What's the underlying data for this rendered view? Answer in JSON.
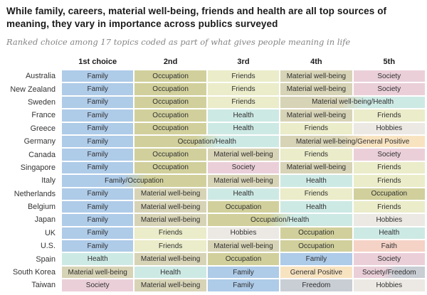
{
  "title": "While family, careers, material well-being, friends and health are all top sources of meaning, they vary in importance across publics surveyed",
  "subtitle": "Ranked choice among 17 topics coded as part of what gives people meaning in life",
  "chart_data": {
    "type": "table",
    "columns": [
      "1st choice",
      "2nd",
      "3rd",
      "4th",
      "5th"
    ],
    "palette": {
      "family": "#aecbe8",
      "occupation": "#d1d09c",
      "friends": "#ebecc9",
      "material": "#d7d3b6",
      "society": "#eacfd9",
      "health": "#cde9e4",
      "hobbies": "#ece9e4",
      "faith": "#f5d2c6",
      "positive": "#f8e3c1",
      "freedom": "#c9ced5"
    },
    "rows": [
      {
        "country": "Australia",
        "cells": [
          {
            "label": "Family",
            "cats": [
              "family"
            ],
            "span": 1
          },
          {
            "label": "Occupation",
            "cats": [
              "occupation"
            ],
            "span": 1
          },
          {
            "label": "Friends",
            "cats": [
              "friends"
            ],
            "span": 1
          },
          {
            "label": "Material well-being",
            "cats": [
              "material"
            ],
            "span": 1
          },
          {
            "label": "Society",
            "cats": [
              "society"
            ],
            "span": 1
          }
        ]
      },
      {
        "country": "New Zealand",
        "cells": [
          {
            "label": "Family",
            "cats": [
              "family"
            ],
            "span": 1
          },
          {
            "label": "Occupation",
            "cats": [
              "occupation"
            ],
            "span": 1
          },
          {
            "label": "Friends",
            "cats": [
              "friends"
            ],
            "span": 1
          },
          {
            "label": "Material well-being",
            "cats": [
              "material"
            ],
            "span": 1
          },
          {
            "label": "Society",
            "cats": [
              "society"
            ],
            "span": 1
          }
        ]
      },
      {
        "country": "Sweden",
        "cells": [
          {
            "label": "Family",
            "cats": [
              "family"
            ],
            "span": 1
          },
          {
            "label": "Occupation",
            "cats": [
              "occupation"
            ],
            "span": 1
          },
          {
            "label": "Friends",
            "cats": [
              "friends"
            ],
            "span": 1
          },
          {
            "label": "Material well-being/Health",
            "cats": [
              "material",
              "health"
            ],
            "span": 2
          }
        ]
      },
      {
        "country": "France",
        "cells": [
          {
            "label": "Family",
            "cats": [
              "family"
            ],
            "span": 1
          },
          {
            "label": "Occupation",
            "cats": [
              "occupation"
            ],
            "span": 1
          },
          {
            "label": "Health",
            "cats": [
              "health"
            ],
            "span": 1
          },
          {
            "label": "Material well-being",
            "cats": [
              "material"
            ],
            "span": 1
          },
          {
            "label": "Friends",
            "cats": [
              "friends"
            ],
            "span": 1
          }
        ]
      },
      {
        "country": "Greece",
        "cells": [
          {
            "label": "Family",
            "cats": [
              "family"
            ],
            "span": 1
          },
          {
            "label": "Occupation",
            "cats": [
              "occupation"
            ],
            "span": 1
          },
          {
            "label": "Health",
            "cats": [
              "health"
            ],
            "span": 1
          },
          {
            "label": "Friends",
            "cats": [
              "friends"
            ],
            "span": 1
          },
          {
            "label": "Hobbies",
            "cats": [
              "hobbies"
            ],
            "span": 1
          }
        ]
      },
      {
        "country": "Germany",
        "cells": [
          {
            "label": "Family",
            "cats": [
              "family"
            ],
            "span": 1
          },
          {
            "label": "Occupation/Health",
            "cats": [
              "occupation",
              "health"
            ],
            "span": 2
          },
          {
            "label": "Material well-being/General Positive",
            "cats": [
              "material",
              "positive"
            ],
            "span": 2
          }
        ]
      },
      {
        "country": "Canada",
        "cells": [
          {
            "label": "Family",
            "cats": [
              "family"
            ],
            "span": 1
          },
          {
            "label": "Occupation",
            "cats": [
              "occupation"
            ],
            "span": 1
          },
          {
            "label": "Material well-being",
            "cats": [
              "material"
            ],
            "span": 1
          },
          {
            "label": "Friends",
            "cats": [
              "friends"
            ],
            "span": 1
          },
          {
            "label": "Society",
            "cats": [
              "society"
            ],
            "span": 1
          }
        ]
      },
      {
        "country": "Singapore",
        "cells": [
          {
            "label": "Family",
            "cats": [
              "family"
            ],
            "span": 1
          },
          {
            "label": "Occupation",
            "cats": [
              "occupation"
            ],
            "span": 1
          },
          {
            "label": "Society",
            "cats": [
              "society"
            ],
            "span": 1
          },
          {
            "label": "Material well-being",
            "cats": [
              "material"
            ],
            "span": 1
          },
          {
            "label": "Friends",
            "cats": [
              "friends"
            ],
            "span": 1
          }
        ]
      },
      {
        "country": "Italy",
        "cells": [
          {
            "label": "Family/Occupation",
            "cats": [
              "family",
              "occupation"
            ],
            "span": 2
          },
          {
            "label": "Material well-being",
            "cats": [
              "material"
            ],
            "span": 1
          },
          {
            "label": "Health",
            "cats": [
              "health"
            ],
            "span": 1
          },
          {
            "label": "Friends",
            "cats": [
              "friends"
            ],
            "span": 1
          }
        ]
      },
      {
        "country": "Netherlands",
        "cells": [
          {
            "label": "Family",
            "cats": [
              "family"
            ],
            "span": 1
          },
          {
            "label": "Material well-being",
            "cats": [
              "material"
            ],
            "span": 1
          },
          {
            "label": "Health",
            "cats": [
              "health"
            ],
            "span": 1
          },
          {
            "label": "Friends",
            "cats": [
              "friends"
            ],
            "span": 1
          },
          {
            "label": "Occupation",
            "cats": [
              "occupation"
            ],
            "span": 1
          }
        ]
      },
      {
        "country": "Belgium",
        "cells": [
          {
            "label": "Family",
            "cats": [
              "family"
            ],
            "span": 1
          },
          {
            "label": "Material well-being",
            "cats": [
              "material"
            ],
            "span": 1
          },
          {
            "label": "Occupation",
            "cats": [
              "occupation"
            ],
            "span": 1
          },
          {
            "label": "Health",
            "cats": [
              "health"
            ],
            "span": 1
          },
          {
            "label": "Friends",
            "cats": [
              "friends"
            ],
            "span": 1
          }
        ]
      },
      {
        "country": "Japan",
        "cells": [
          {
            "label": "Family",
            "cats": [
              "family"
            ],
            "span": 1
          },
          {
            "label": "Material well-being",
            "cats": [
              "material"
            ],
            "span": 1
          },
          {
            "label": "Occupation/Health",
            "cats": [
              "occupation",
              "health"
            ],
            "span": 2
          },
          {
            "label": "Hobbies",
            "cats": [
              "hobbies"
            ],
            "span": 1
          }
        ]
      },
      {
        "country": "UK",
        "cells": [
          {
            "label": "Family",
            "cats": [
              "family"
            ],
            "span": 1
          },
          {
            "label": "Friends",
            "cats": [
              "friends"
            ],
            "span": 1
          },
          {
            "label": "Hobbies",
            "cats": [
              "hobbies"
            ],
            "span": 1
          },
          {
            "label": "Occupation",
            "cats": [
              "occupation"
            ],
            "span": 1
          },
          {
            "label": "Health",
            "cats": [
              "health"
            ],
            "span": 1
          }
        ]
      },
      {
        "country": "U.S.",
        "cells": [
          {
            "label": "Family",
            "cats": [
              "family"
            ],
            "span": 1
          },
          {
            "label": "Friends",
            "cats": [
              "friends"
            ],
            "span": 1
          },
          {
            "label": "Material well-being",
            "cats": [
              "material"
            ],
            "span": 1
          },
          {
            "label": "Occupation",
            "cats": [
              "occupation"
            ],
            "span": 1
          },
          {
            "label": "Faith",
            "cats": [
              "faith"
            ],
            "span": 1
          }
        ]
      },
      {
        "country": "Spain",
        "cells": [
          {
            "label": "Health",
            "cats": [
              "health"
            ],
            "span": 1
          },
          {
            "label": "Material well-being",
            "cats": [
              "material"
            ],
            "span": 1
          },
          {
            "label": "Occupation",
            "cats": [
              "occupation"
            ],
            "span": 1
          },
          {
            "label": "Family",
            "cats": [
              "family"
            ],
            "span": 1
          },
          {
            "label": "Society",
            "cats": [
              "society"
            ],
            "span": 1
          }
        ]
      },
      {
        "country": "South Korea",
        "cells": [
          {
            "label": "Material well-being",
            "cats": [
              "material"
            ],
            "span": 1
          },
          {
            "label": "Health",
            "cats": [
              "health"
            ],
            "span": 1
          },
          {
            "label": "Family",
            "cats": [
              "family"
            ],
            "span": 1
          },
          {
            "label": "General Positive",
            "cats": [
              "positive"
            ],
            "span": 1
          },
          {
            "label": "Society/Freedom",
            "cats": [
              "society",
              "freedom"
            ],
            "span": 1
          }
        ]
      },
      {
        "country": "Taiwan",
        "cells": [
          {
            "label": "Society",
            "cats": [
              "society"
            ],
            "span": 1
          },
          {
            "label": "Material well-being",
            "cats": [
              "material"
            ],
            "span": 1
          },
          {
            "label": "Family",
            "cats": [
              "family"
            ],
            "span": 1
          },
          {
            "label": "Freedom",
            "cats": [
              "freedom"
            ],
            "span": 1
          },
          {
            "label": "Hobbies",
            "cats": [
              "hobbies"
            ],
            "span": 1
          }
        ]
      }
    ]
  }
}
